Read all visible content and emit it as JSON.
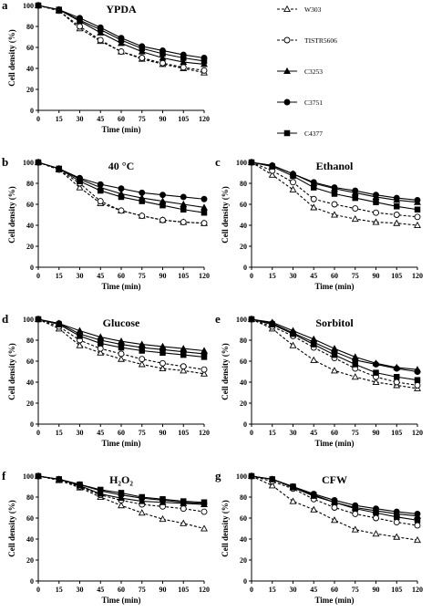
{
  "chart_data": [
    {
      "panel": "a",
      "title": "YPDA",
      "type": "line",
      "xlabel": "Time (min)",
      "ylabel": "Cell density (%)",
      "x": [
        0,
        15,
        30,
        45,
        60,
        75,
        90,
        105,
        120
      ],
      "xlim": [
        0,
        120
      ],
      "ylim": [
        0,
        100
      ],
      "series": [
        {
          "name": "W303",
          "values": [
            100,
            95,
            78,
            66,
            56,
            49,
            44,
            40,
            36
          ]
        },
        {
          "name": "TISTR5606",
          "values": [
            100,
            95,
            80,
            67,
            56,
            50,
            45,
            41,
            38
          ]
        },
        {
          "name": "C3253",
          "values": [
            100,
            96,
            85,
            74,
            64,
            56,
            50,
            46,
            44
          ]
        },
        {
          "name": "C3751",
          "values": [
            100,
            96,
            88,
            79,
            69,
            61,
            57,
            53,
            50
          ]
        },
        {
          "name": "C4377",
          "values": [
            100,
            96,
            86,
            77,
            67,
            59,
            54,
            50,
            47
          ]
        }
      ]
    },
    {
      "panel": "b",
      "title": "40 °C",
      "type": "line",
      "xlabel": "Time (min)",
      "ylabel": "Cell density (%)",
      "x": [
        0,
        15,
        30,
        45,
        60,
        75,
        90,
        105,
        120
      ],
      "xlim": [
        0,
        120
      ],
      "ylim": [
        0,
        100
      ],
      "series": [
        {
          "name": "W303",
          "values": [
            100,
            93,
            76,
            61,
            54,
            49,
            45,
            43,
            42
          ]
        },
        {
          "name": "TISTR5606",
          "values": [
            100,
            93,
            80,
            63,
            54,
            49,
            45,
            43,
            42
          ]
        },
        {
          "name": "C3253",
          "values": [
            100,
            94,
            84,
            76,
            70,
            66,
            63,
            60,
            57
          ]
        },
        {
          "name": "C3751",
          "values": [
            100,
            94,
            85,
            79,
            75,
            71,
            69,
            67,
            65
          ]
        },
        {
          "name": "C4377",
          "values": [
            100,
            94,
            82,
            73,
            67,
            63,
            59,
            55,
            52
          ]
        }
      ]
    },
    {
      "panel": "c",
      "title": "Ethanol",
      "type": "line",
      "xlabel": "Time (min)",
      "ylabel": "Cell density (%)",
      "x": [
        0,
        15,
        30,
        45,
        60,
        75,
        90,
        105,
        120
      ],
      "xlim": [
        0,
        120
      ],
      "ylim": [
        0,
        100
      ],
      "series": [
        {
          "name": "W303",
          "values": [
            100,
            88,
            74,
            57,
            50,
            46,
            43,
            42,
            40
          ]
        },
        {
          "name": "TISTR5606",
          "values": [
            100,
            92,
            81,
            65,
            60,
            56,
            52,
            50,
            48
          ]
        },
        {
          "name": "C3253",
          "values": [
            100,
            97,
            89,
            80,
            75,
            71,
            67,
            64,
            62
          ]
        },
        {
          "name": "C3751",
          "values": [
            100,
            97,
            89,
            81,
            76,
            73,
            69,
            66,
            64
          ]
        },
        {
          "name": "C4377",
          "values": [
            100,
            96,
            87,
            76,
            70,
            66,
            62,
            58,
            55
          ]
        }
      ]
    },
    {
      "panel": "d",
      "title": "Glucose",
      "type": "line",
      "xlabel": "Time (min)",
      "ylabel": "Cell density (%)",
      "x": [
        0,
        15,
        30,
        45,
        60,
        75,
        90,
        105,
        120
      ],
      "xlim": [
        0,
        120
      ],
      "ylim": [
        0,
        100
      ],
      "series": [
        {
          "name": "W303",
          "values": [
            100,
            91,
            75,
            68,
            62,
            57,
            53,
            51,
            48
          ]
        },
        {
          "name": "TISTR5606",
          "values": [
            100,
            93,
            80,
            72,
            67,
            62,
            58,
            55,
            52
          ]
        },
        {
          "name": "C3253",
          "values": [
            100,
            96,
            89,
            83,
            79,
            76,
            74,
            72,
            70
          ]
        },
        {
          "name": "C3751",
          "values": [
            100,
            96,
            86,
            80,
            76,
            73,
            71,
            69,
            67
          ]
        },
        {
          "name": "C4377",
          "values": [
            100,
            95,
            84,
            77,
            73,
            70,
            68,
            66,
            64
          ]
        }
      ]
    },
    {
      "panel": "e",
      "title": "Sorbitol",
      "type": "line",
      "xlabel": "Time (min)",
      "ylabel": "Cell density (%)",
      "x": [
        0,
        15,
        30,
        45,
        60,
        75,
        90,
        105,
        120
      ],
      "xlim": [
        0,
        120
      ],
      "ylim": [
        0,
        100
      ],
      "series": [
        {
          "name": "W303",
          "values": [
            100,
            91,
            75,
            61,
            51,
            45,
            40,
            37,
            34
          ]
        },
        {
          "name": "TISTR5606",
          "values": [
            100,
            93,
            84,
            73,
            63,
            53,
            45,
            40,
            37
          ]
        },
        {
          "name": "C3253",
          "values": [
            100,
            97,
            89,
            81,
            72,
            64,
            58,
            54,
            52
          ]
        },
        {
          "name": "C3751",
          "values": [
            100,
            96,
            87,
            78,
            69,
            61,
            57,
            53,
            50
          ]
        },
        {
          "name": "C4377",
          "values": [
            100,
            95,
            86,
            76,
            66,
            57,
            49,
            45,
            42
          ]
        }
      ]
    },
    {
      "panel": "f",
      "title": "H₂O₂",
      "type": "line",
      "xlabel": "Time (min)",
      "ylabel": "Cell density (%)",
      "x": [
        0,
        15,
        30,
        45,
        60,
        75,
        90,
        105,
        120
      ],
      "xlim": [
        0,
        120
      ],
      "ylim": [
        0,
        100
      ],
      "series": [
        {
          "name": "W303",
          "values": [
            100,
            96,
            89,
            80,
            72,
            65,
            59,
            55,
            50
          ]
        },
        {
          "name": "TISTR5606",
          "values": [
            100,
            97,
            90,
            82,
            77,
            73,
            71,
            69,
            66
          ]
        },
        {
          "name": "C3253",
          "values": [
            100,
            97,
            91,
            83,
            79,
            76,
            75,
            74,
            73
          ]
        },
        {
          "name": "C3751",
          "values": [
            100,
            97,
            92,
            86,
            82,
            79,
            77,
            75,
            74
          ]
        },
        {
          "name": "C4377",
          "values": [
            100,
            97,
            92,
            87,
            84,
            80,
            78,
            76,
            75
          ]
        }
      ]
    },
    {
      "panel": "g",
      "title": "CFW",
      "type": "line",
      "xlabel": "Time (min)",
      "ylabel": "Cell density (%)",
      "x": [
        0,
        15,
        30,
        45,
        60,
        75,
        90,
        105,
        120
      ],
      "xlim": [
        0,
        120
      ],
      "ylim": [
        0,
        100
      ],
      "series": [
        {
          "name": "W303",
          "values": [
            100,
            91,
            76,
            68,
            58,
            49,
            45,
            42,
            39
          ]
        },
        {
          "name": "TISTR5606",
          "values": [
            100,
            95,
            88,
            78,
            70,
            64,
            60,
            56,
            53
          ]
        },
        {
          "name": "C3253",
          "values": [
            100,
            97,
            89,
            81,
            75,
            70,
            67,
            64,
            62
          ]
        },
        {
          "name": "C3751",
          "values": [
            100,
            97,
            90,
            83,
            77,
            72,
            69,
            66,
            64
          ]
        },
        {
          "name": "C4377",
          "values": [
            100,
            97,
            90,
            82,
            75,
            69,
            65,
            61,
            58
          ]
        }
      ]
    }
  ],
  "legend": [
    {
      "name": "W303",
      "marker": "open-triangle",
      "line": "dashed"
    },
    {
      "name": "TISTR5606",
      "marker": "open-circle",
      "line": "dashed"
    },
    {
      "name": "C3253",
      "marker": "filled-triangle",
      "line": "solid"
    },
    {
      "name": "C3751",
      "marker": "filled-circle",
      "line": "solid"
    },
    {
      "name": "C4377",
      "marker": "filled-square",
      "line": "solid"
    }
  ],
  "x_ticks": [
    0,
    15,
    30,
    45,
    60,
    75,
    90,
    105,
    120
  ],
  "y_ticks": [
    0,
    20,
    40,
    60,
    80,
    100
  ]
}
